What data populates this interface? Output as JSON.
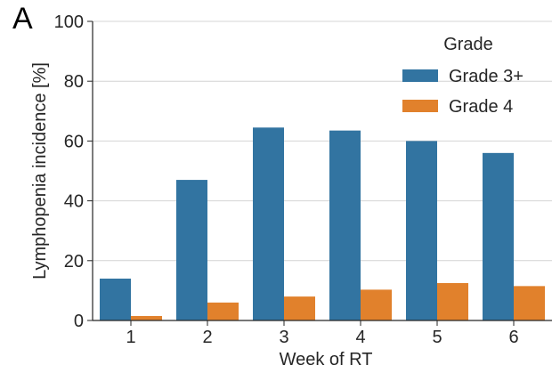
{
  "panel_label": "A",
  "chart_data": {
    "type": "bar",
    "title": "",
    "xlabel": "Week of RT",
    "ylabel": "Lymphopenia incidence [%]",
    "ylim": [
      0,
      100
    ],
    "yticks": [
      0,
      20,
      40,
      60,
      80,
      100
    ],
    "categories": [
      "1",
      "2",
      "3",
      "4",
      "5",
      "6"
    ],
    "series": [
      {
        "name": "Grade 3+",
        "color": "#3274a1",
        "values": [
          14,
          47,
          64.5,
          63.5,
          60,
          56
        ]
      },
      {
        "name": "Grade 4",
        "color": "#e1812c",
        "values": [
          1.5,
          6,
          8,
          10.3,
          12.5,
          11.5
        ]
      }
    ],
    "legend": {
      "title": "Grade",
      "placement": "top-right"
    },
    "grid": "y"
  }
}
